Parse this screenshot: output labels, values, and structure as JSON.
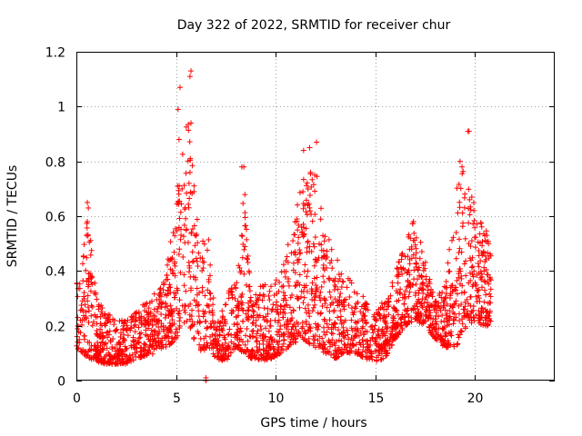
{
  "chart_data": {
    "type": "scatter",
    "title": "Day 322 of 2022, SRMTID for receiver chur",
    "xlabel": "GPS time / hours",
    "ylabel": "SRMTID / TECUs",
    "xlim": [
      0,
      24
    ],
    "ylim": [
      0,
      1.2
    ],
    "xticks": [
      0,
      5,
      10,
      15,
      20
    ],
    "xtick_labels": [
      "0",
      "5",
      "10",
      "15",
      "20"
    ],
    "yticks": [
      0,
      0.2,
      0.4,
      0.6,
      0.8,
      1,
      1.2
    ],
    "ytick_labels": [
      "0",
      "0.2",
      "0.4",
      "0.6",
      "0.8",
      "1",
      "1.2"
    ],
    "grid": true,
    "marker": "+",
    "series_color": "#ff0000",
    "envelope": {
      "x": [
        0.0,
        0.3,
        0.6,
        1.0,
        1.5,
        2.0,
        2.5,
        3.0,
        3.5,
        4.0,
        4.5,
        5.0,
        5.3,
        5.6,
        5.9,
        6.2,
        6.6,
        7.0,
        7.5,
        8.0,
        8.4,
        8.8,
        9.3,
        9.8,
        10.3,
        10.8,
        11.2,
        11.6,
        12.0,
        12.5,
        13.0,
        13.5,
        14.0,
        14.5,
        15.0,
        15.5,
        16.0,
        16.5,
        17.0,
        17.5,
        18.0,
        18.5,
        19.0,
        19.3,
        19.7,
        20.0,
        20.4,
        20.8
      ],
      "low": [
        0.12,
        0.1,
        0.08,
        0.07,
        0.06,
        0.06,
        0.06,
        0.08,
        0.09,
        0.1,
        0.12,
        0.15,
        0.2,
        0.22,
        0.15,
        0.1,
        0.12,
        0.08,
        0.07,
        0.12,
        0.1,
        0.08,
        0.07,
        0.08,
        0.1,
        0.13,
        0.15,
        0.14,
        0.12,
        0.1,
        0.08,
        0.1,
        0.1,
        0.08,
        0.07,
        0.08,
        0.15,
        0.2,
        0.22,
        0.2,
        0.15,
        0.12,
        0.12,
        0.15,
        0.2,
        0.22,
        0.2,
        0.2
      ],
      "high": [
        0.35,
        0.5,
        0.6,
        0.3,
        0.25,
        0.22,
        0.22,
        0.25,
        0.3,
        0.32,
        0.4,
        0.65,
        0.9,
        1.0,
        0.75,
        0.5,
        0.55,
        0.2,
        0.3,
        0.4,
        0.75,
        0.3,
        0.35,
        0.35,
        0.4,
        0.55,
        0.7,
        0.8,
        0.78,
        0.55,
        0.45,
        0.4,
        0.35,
        0.3,
        0.25,
        0.3,
        0.4,
        0.5,
        0.6,
        0.45,
        0.3,
        0.35,
        0.7,
        0.78,
        0.72,
        0.68,
        0.62,
        0.5
      ]
    },
    "outliers": [
      {
        "x": 5.2,
        "y": 1.07
      },
      {
        "x": 5.75,
        "y": 1.13
      },
      {
        "x": 5.7,
        "y": 1.11
      },
      {
        "x": 5.1,
        "y": 0.99
      },
      {
        "x": 5.75,
        "y": 0.94
      },
      {
        "x": 5.15,
        "y": 0.88
      },
      {
        "x": 19.65,
        "y": 0.91
      },
      {
        "x": 19.7,
        "y": 0.91
      },
      {
        "x": 8.4,
        "y": 0.78
      },
      {
        "x": 8.3,
        "y": 0.78
      },
      {
        "x": 12.05,
        "y": 0.87
      },
      {
        "x": 11.7,
        "y": 0.85
      },
      {
        "x": 11.4,
        "y": 0.84
      },
      {
        "x": 0.55,
        "y": 0.65
      },
      {
        "x": 0.6,
        "y": 0.63
      },
      {
        "x": 0.55,
        "y": 0.58
      },
      {
        "x": 19.25,
        "y": 0.8
      },
      {
        "x": 19.35,
        "y": 0.78
      },
      {
        "x": 6.5,
        "y": 0.0
      },
      {
        "x": 6.5,
        "y": 0.01
      }
    ]
  }
}
